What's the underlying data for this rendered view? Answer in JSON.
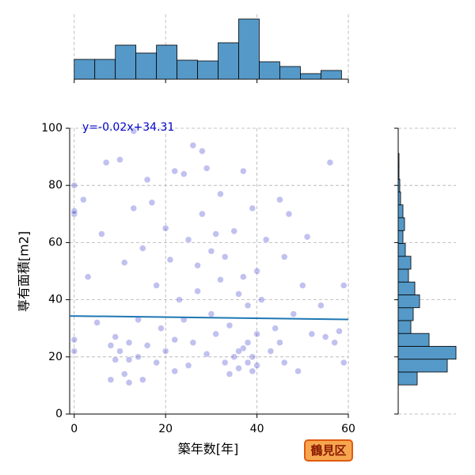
{
  "chart_data": {
    "type": "scatter",
    "xlabel": "築年数[年]",
    "ylabel": "専有面積[m2]",
    "xlim": [
      -1,
      60
    ],
    "ylim": [
      0,
      100
    ],
    "xticks": [
      0,
      20,
      40,
      60
    ],
    "yticks": [
      0,
      20,
      40,
      60,
      80,
      100
    ],
    "grid": true,
    "color": "#3333cc",
    "x": [
      0,
      0,
      0,
      0,
      0,
      2,
      3,
      5,
      6,
      7,
      8,
      8,
      9,
      10,
      10,
      11,
      11,
      12,
      12,
      13,
      13,
      14,
      14,
      15,
      16,
      16,
      17,
      18,
      18,
      19,
      20,
      20,
      21,
      22,
      22,
      23,
      24,
      25,
      25,
      26,
      26,
      27,
      28,
      28,
      29,
      29,
      30,
      30,
      31,
      32,
      32,
      33,
      33,
      34,
      35,
      35,
      36,
      36,
      37,
      37,
      38,
      38,
      39,
      39,
      39,
      40,
      40,
      41,
      42,
      43,
      44,
      45,
      45,
      46,
      46,
      47,
      48,
      49,
      50,
      51,
      52,
      54,
      55,
      56,
      57,
      58,
      59,
      59,
      37,
      34,
      36,
      38,
      40,
      15,
      12,
      9,
      24,
      22,
      31,
      27
    ],
    "y": [
      70,
      71,
      80,
      26,
      22,
      75,
      48,
      32,
      63,
      88,
      24,
      12,
      19,
      89,
      22,
      14,
      53,
      25,
      11,
      72,
      99,
      20,
      33,
      58,
      82,
      24,
      74,
      45,
      18,
      30,
      65,
      22,
      54,
      85,
      26,
      40,
      84,
      17,
      61,
      94,
      25,
      43,
      92,
      70,
      86,
      21,
      57,
      35,
      28,
      77,
      47,
      18,
      55,
      31,
      64,
      20,
      16,
      42,
      85,
      23,
      18,
      38,
      72,
      15,
      20,
      50,
      28,
      40,
      61,
      22,
      30,
      75,
      25,
      18,
      55,
      70,
      35,
      15,
      45,
      62,
      28,
      38,
      27,
      88,
      25,
      29,
      45,
      18,
      48,
      14,
      22,
      25,
      17,
      12,
      19,
      27,
      33,
      15,
      63,
      52
    ],
    "regression": {
      "label": "y=-0.02x+34.31",
      "slope": -0.02,
      "intercept": 34.31,
      "color": "#1f77b4"
    },
    "top_hist": {
      "bins": [
        0,
        4.5,
        9,
        13.5,
        18,
        22.5,
        27,
        31.5,
        36,
        40.5,
        45,
        49.5,
        54,
        58.5
      ],
      "counts": [
        25,
        25,
        43,
        33,
        43,
        24,
        23,
        46,
        76,
        22,
        16,
        7,
        11
      ],
      "color": "#5599c8"
    },
    "right_hist": {
      "bins": [
        10.2,
        14.7,
        19.2,
        23.7,
        28.2,
        32.7,
        37.2,
        41.7,
        46.2,
        50.7,
        55.2,
        59.7,
        64.2,
        68.7,
        73.2,
        77.7,
        82.2,
        86.7,
        91.2
      ],
      "counts": [
        24,
        62,
        73,
        39,
        16,
        19,
        27,
        21,
        13,
        16,
        9,
        6,
        8,
        6,
        3,
        2,
        1,
        1
      ],
      "color": "#5599c8"
    }
  },
  "badge": "鶴見区"
}
